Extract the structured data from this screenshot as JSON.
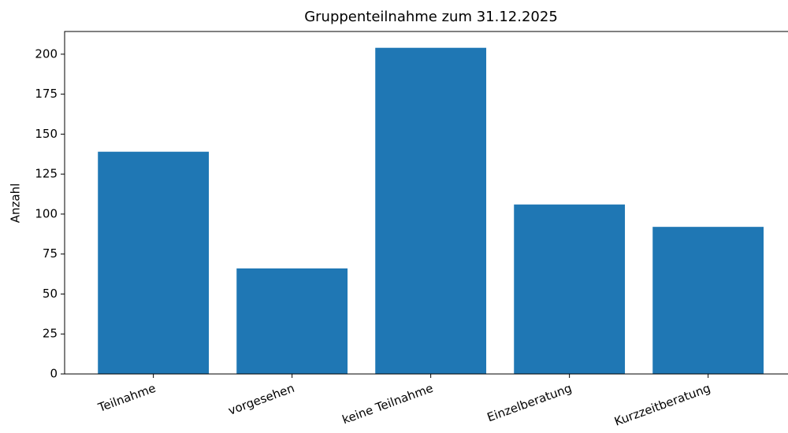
{
  "chart_data": {
    "type": "bar",
    "title": "Gruppenteilnahme zum 31.12.2025",
    "y_label": "Anzahl",
    "categories": [
      "Teilnahme",
      "vorgesehen",
      "keine Teilnahme",
      "Einzelberatung",
      "Kurzzeitberatung"
    ],
    "values": [
      139,
      66,
      204,
      106,
      92
    ],
    "color": "#1f77b4",
    "ylim": [
      0,
      214.2
    ],
    "yticks": [
      0,
      25,
      50,
      75,
      100,
      125,
      150,
      175,
      200
    ],
    "grid": false
  }
}
